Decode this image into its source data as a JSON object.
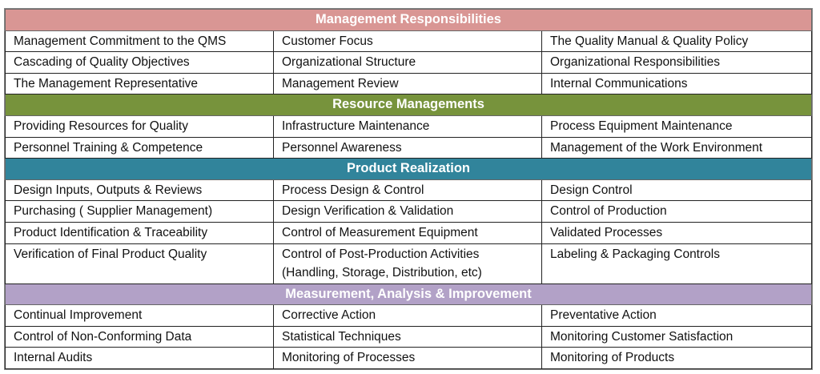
{
  "colors": {
    "management": "#d99694",
    "resource": "#77933c",
    "product": "#31849b",
    "measurement": "#b2a1c7"
  },
  "sections": [
    {
      "title": "Management Responsibilities",
      "rows": [
        [
          "Management Commitment to the QMS",
          "Customer Focus",
          "The Quality Manual & Quality Policy"
        ],
        [
          "Cascading of Quality Objectives",
          "Organizational Structure",
          "Organizational Responsibilities"
        ],
        [
          "The Management Representative",
          "Management Review",
          "Internal Communications"
        ]
      ]
    },
    {
      "title": "Resource Managements",
      "rows": [
        [
          "Providing Resources for Quality",
          "Infrastructure Maintenance",
          "Process Equipment Maintenance"
        ],
        [
          "Personnel Training & Competence",
          "Personnel Awareness",
          "Management of the Work Environment"
        ]
      ]
    },
    {
      "title": "Product Realization",
      "rows": [
        [
          "Design Inputs, Outputs & Reviews",
          "Process Design & Control",
          "Design Control"
        ],
        [
          "Purchasing ( Supplier Management)",
          "Design Verification & Validation",
          "Control of Production"
        ],
        [
          "Product Identification & Traceability",
          "Control of Measurement Equipment",
          "Validated Processes"
        ],
        [
          "Verification of Final Product Quality",
          "Control of Post-Production Activities",
          "Labeling & Packaging  Controls"
        ]
      ],
      "extra_line": "(Handling, Storage, Distribution, etc)"
    },
    {
      "title": "Measurement, Analysis & Improvement",
      "rows": [
        [
          "Continual Improvement",
          "Corrective Action",
          "Preventative Action"
        ],
        [
          "Control of Non-Conforming Data",
          "Statistical Techniques",
          "Monitoring Customer Satisfaction"
        ],
        [
          "Internal Audits",
          "Monitoring of Processes",
          "Monitoring of Products"
        ]
      ]
    }
  ]
}
